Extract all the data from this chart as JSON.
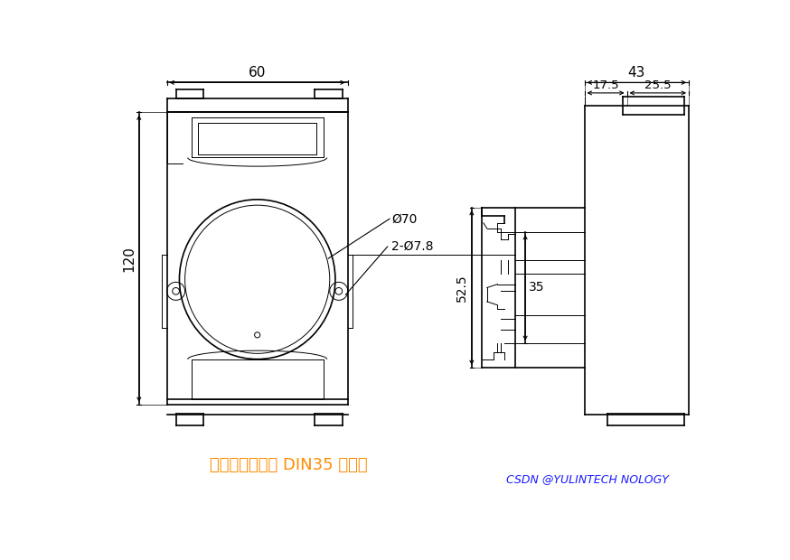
{
  "bg_color": "#ffffff",
  "lc": "#000000",
  "ann_color": "#ff8c00",
  "wm_color": "#1a1aff",
  "wm_text": "CSDN @YULINTECH NOLOGY",
  "ann_text": "可以安装在标准 DIN35 导轨上",
  "d60": "60",
  "d120": "120",
  "d43": "43",
  "d17_5": "17.5",
  "d25_5": "25.5",
  "d52_5": "52.5",
  "d35": "35",
  "dphi70": "Ø70",
  "dphi78": "2-Ø7.8",
  "lw": 1.2,
  "tlw": 0.7
}
